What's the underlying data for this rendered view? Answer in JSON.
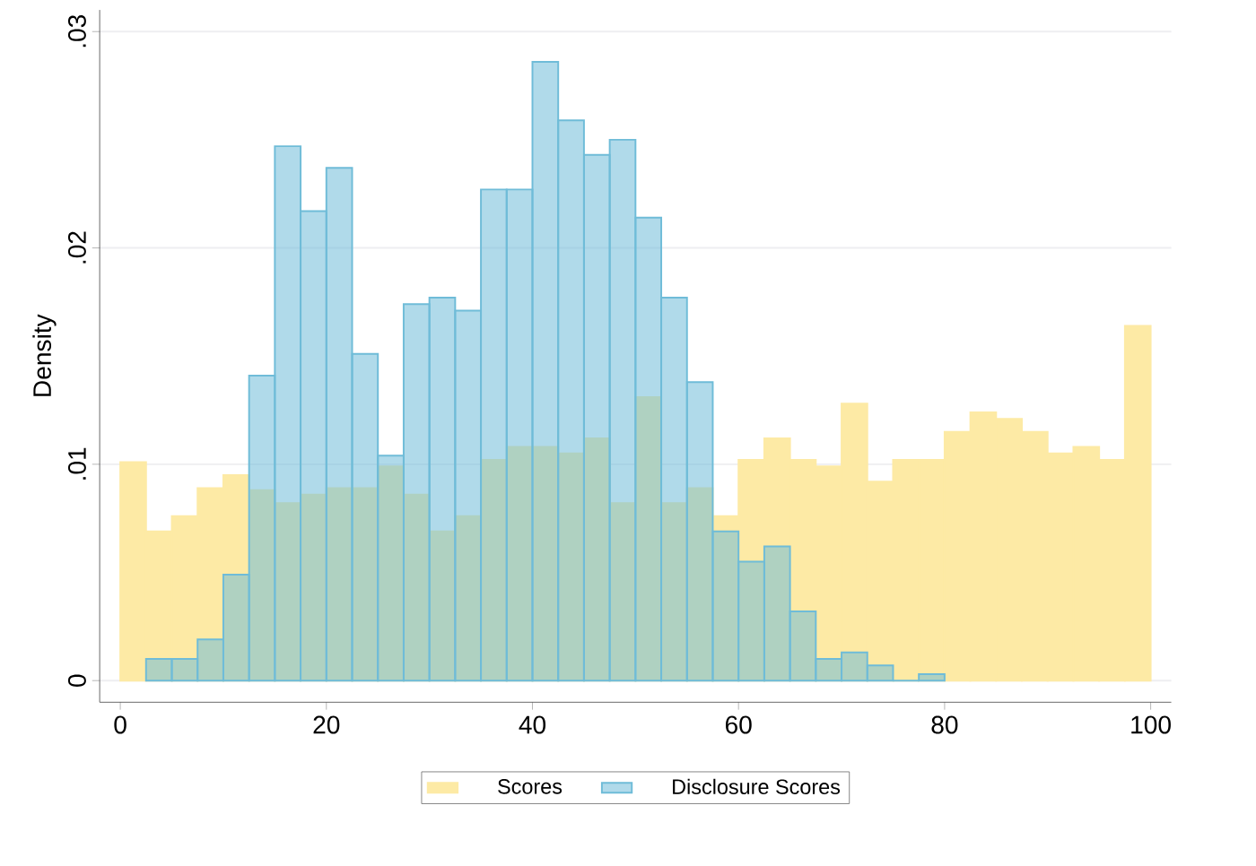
{
  "chart_data": {
    "type": "histogram",
    "ylabel": "Density",
    "xlim": [
      -2,
      102
    ],
    "ylim": [
      -0.001,
      0.031
    ],
    "xticks": [
      0,
      20,
      40,
      60,
      80,
      100
    ],
    "yticks": [
      {
        "value": 0,
        "label": "0"
      },
      {
        "value": 0.01,
        "label": ".01"
      },
      {
        "value": 0.02,
        "label": ".02"
      },
      {
        "value": 0.03,
        "label": ".03"
      }
    ],
    "grid": "y",
    "legend": "bottom",
    "bins": [
      0,
      2.5,
      5,
      7.5,
      10,
      12.5,
      15,
      17.5,
      20,
      22.5,
      25,
      27.5,
      30,
      32.5,
      35,
      37.5,
      40,
      42.5,
      45,
      47.5,
      50,
      52.5,
      55,
      57.5,
      60,
      62.5,
      65,
      67.5,
      70,
      72.5,
      75,
      77.5,
      80,
      82.5,
      85,
      87.5,
      90,
      92.5,
      95,
      97.5,
      100
    ],
    "series": [
      {
        "name": "Scores",
        "color": "#fdeaa5",
        "values": [
          0.0101,
          0.0069,
          0.0076,
          0.0089,
          0.0095,
          0.0088,
          0.0082,
          0.0086,
          0.0089,
          0.0089,
          0.0099,
          0.0086,
          0.0069,
          0.0076,
          0.0102,
          0.0108,
          0.0108,
          0.0105,
          0.0112,
          0.0082,
          0.0131,
          0.0082,
          0.0089,
          0.0076,
          0.0102,
          0.0112,
          0.0102,
          0.0099,
          0.0128,
          0.0092,
          0.0102,
          0.0102,
          0.0115,
          0.0124,
          0.0121,
          0.0115,
          0.0105,
          0.0108,
          0.0102,
          0.0164
        ]
      },
      {
        "name": "Disclosure Scores",
        "color": "#6fbcd8",
        "values": [
          null,
          0.001,
          0.001,
          0.0019,
          0.0049,
          0.0141,
          0.0247,
          0.0217,
          0.0237,
          0.0151,
          0.0104,
          0.0174,
          0.0177,
          0.0171,
          0.0227,
          0.0227,
          0.0286,
          0.0259,
          0.0243,
          0.025,
          0.0214,
          0.0177,
          0.0138,
          0.0069,
          0.0055,
          0.0062,
          0.0032,
          0.001,
          0.0013,
          0.0007,
          0,
          0.0003,
          null,
          null,
          null,
          null,
          null,
          null,
          null,
          null
        ]
      }
    ]
  }
}
